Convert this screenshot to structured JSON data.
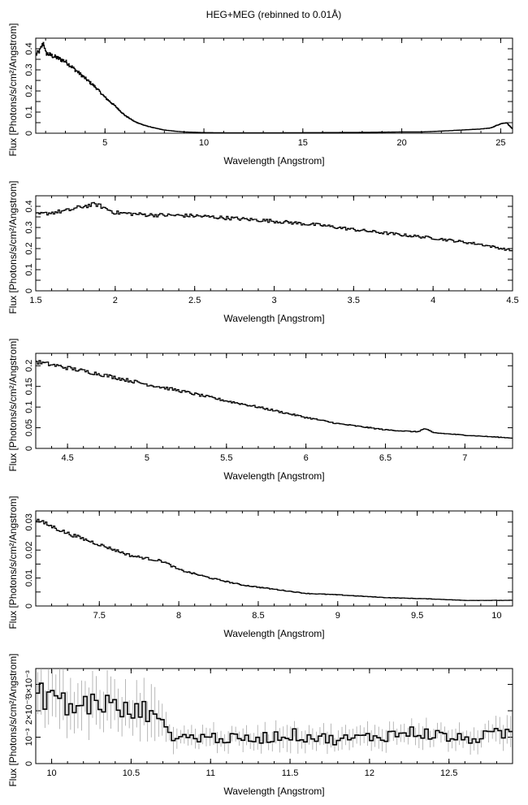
{
  "page": {
    "title": "HEG+MEG (rebinned to 0.01Å)"
  },
  "colors": {
    "data": "#000000",
    "errorbar": "#9a9a9a",
    "axis": "#000000",
    "background": "#ffffff"
  },
  "chart_data": [
    {
      "type": "line",
      "title": "HEG+MEG (rebinned to 0.01Å)",
      "xlabel": "Wavelength [Angstrom]",
      "ylabel": "Flux [Photons/s/cm²/Angstrom]",
      "xlim": [
        1.5,
        25.6
      ],
      "ylim": [
        0,
        0.45
      ],
      "xticks": [
        5,
        10,
        15,
        20,
        25
      ],
      "yticks": [
        0,
        0.05,
        0.1,
        0.15,
        0.2,
        0.25,
        0.3,
        0.35,
        0.4
      ],
      "yticklabels": [
        "0",
        "",
        "0.1",
        "",
        "0.2",
        "",
        "0.3",
        "",
        "0.4"
      ],
      "grid": false,
      "series": [
        {
          "x": [
            1.5,
            1.7,
            1.9,
            2.0,
            2.5,
            3.0,
            3.5,
            4.0,
            4.5,
            5.0,
            5.5,
            6.0,
            6.5,
            7.0,
            7.5,
            8.0,
            8.5,
            9.0,
            10.0,
            11.0,
            12.0,
            14.0,
            16.0,
            18.0,
            19.0,
            20.0,
            21.0,
            22.0,
            23.0,
            24.0,
            24.5,
            25.0,
            25.3,
            25.6
          ],
          "y": [
            0.37,
            0.39,
            0.43,
            0.38,
            0.36,
            0.34,
            0.3,
            0.26,
            0.22,
            0.17,
            0.13,
            0.085,
            0.055,
            0.037,
            0.025,
            0.015,
            0.01,
            0.006,
            0.003,
            0.002,
            0.002,
            0.002,
            0.003,
            0.004,
            0.005,
            0.006,
            0.006,
            0.01,
            0.015,
            0.02,
            0.025,
            0.045,
            0.05,
            0.02
          ]
        }
      ]
    },
    {
      "type": "line",
      "xlabel": "Wavelength [Angstrom]",
      "ylabel": "Flux [Photons/s/cm²/Angstrom]",
      "xlim": [
        1.5,
        4.5
      ],
      "ylim": [
        0,
        0.45
      ],
      "xticks": [
        1.5,
        2,
        2.5,
        3,
        3.5,
        4,
        4.5
      ],
      "yticks": [
        0,
        0.05,
        0.1,
        0.15,
        0.2,
        0.25,
        0.3,
        0.35,
        0.4
      ],
      "yticklabels": [
        "0",
        "",
        "0.1",
        "",
        "0.2",
        "",
        "0.3",
        "",
        "0.4"
      ],
      "grid": false,
      "series": [
        {
          "x": [
            1.5,
            1.6,
            1.7,
            1.8,
            1.88,
            2.0,
            2.2,
            2.5,
            2.8,
            3.0,
            3.3,
            3.5,
            3.8,
            4.0,
            4.3,
            4.5
          ],
          "y": [
            0.36,
            0.37,
            0.38,
            0.4,
            0.41,
            0.37,
            0.36,
            0.355,
            0.34,
            0.33,
            0.31,
            0.29,
            0.265,
            0.25,
            0.22,
            0.19
          ]
        }
      ]
    },
    {
      "type": "line",
      "xlabel": "Wavelength [Angstrom]",
      "ylabel": "Flux [Photons/s/cm²/Angstrom]",
      "xlim": [
        4.3,
        7.3
      ],
      "ylim": [
        0,
        0.23
      ],
      "xticks": [
        4.5,
        5,
        5.5,
        6,
        6.5,
        7
      ],
      "yticks": [
        0,
        0.05,
        0.1,
        0.15,
        0.2
      ],
      "yticklabels": [
        "0",
        "0.05",
        "0.1",
        "0.15",
        "0.2"
      ],
      "grid": false,
      "series": [
        {
          "x": [
            4.3,
            4.5,
            4.7,
            5.0,
            5.2,
            5.5,
            5.7,
            6.0,
            6.2,
            6.5,
            6.7,
            6.75,
            6.8,
            7.0,
            7.3
          ],
          "y": [
            0.21,
            0.195,
            0.18,
            0.155,
            0.14,
            0.115,
            0.1,
            0.075,
            0.06,
            0.045,
            0.04,
            0.048,
            0.038,
            0.032,
            0.025
          ]
        }
      ]
    },
    {
      "type": "line",
      "xlabel": "Wavelength [Angstrom]",
      "ylabel": "Flux [Photons/s/cm²/Angstrom]",
      "xlim": [
        7.1,
        10.1
      ],
      "ylim": [
        0,
        0.034
      ],
      "xticks": [
        7.5,
        8,
        8.5,
        9,
        9.5,
        10
      ],
      "yticks": [
        0,
        0.005,
        0.01,
        0.015,
        0.02,
        0.025,
        0.03
      ],
      "yticklabels": [
        "0",
        "",
        "0.01",
        "",
        "0.02",
        "",
        "0.03"
      ],
      "grid": false,
      "series": [
        {
          "x": [
            7.1,
            7.3,
            7.5,
            7.7,
            7.9,
            8.0,
            8.2,
            8.4,
            8.6,
            8.8,
            9.0,
            9.3,
            9.6,
            9.8,
            10.1
          ],
          "y": [
            0.031,
            0.026,
            0.022,
            0.018,
            0.016,
            0.013,
            0.01,
            0.0075,
            0.006,
            0.0045,
            0.004,
            0.003,
            0.0025,
            0.002,
            0.002
          ]
        }
      ]
    },
    {
      "type": "line",
      "xlabel": "Wavelength [Angstrom]",
      "ylabel": "Flux [Photons/s/cm²/Angstrom]",
      "xlim": [
        9.9,
        12.9
      ],
      "ylim": [
        0,
        0.0036
      ],
      "xticks": [
        10,
        10.5,
        11,
        11.5,
        12,
        12.5
      ],
      "yticks": [
        0,
        0.001,
        0.002,
        0.003
      ],
      "yticklabels": [
        "0",
        "10⁻³",
        "2×10⁻³",
        "3×10⁻³"
      ],
      "grid": false,
      "errorbars": true,
      "series": [
        {
          "x": [
            9.9,
            10.0,
            10.1,
            10.2,
            10.3,
            10.4,
            10.5,
            10.6,
            10.65,
            10.7,
            10.8,
            11.0,
            11.2,
            11.5,
            11.8,
            12.0,
            12.3,
            12.6,
            12.9
          ],
          "y": [
            0.0025,
            0.0027,
            0.0021,
            0.0022,
            0.0024,
            0.0021,
            0.0019,
            0.002,
            0.0023,
            0.0013,
            0.001,
            0.001,
            0.0009,
            0.0011,
            0.0009,
            0.001,
            0.0012,
            0.0009,
            0.0012
          ]
        }
      ]
    }
  ]
}
